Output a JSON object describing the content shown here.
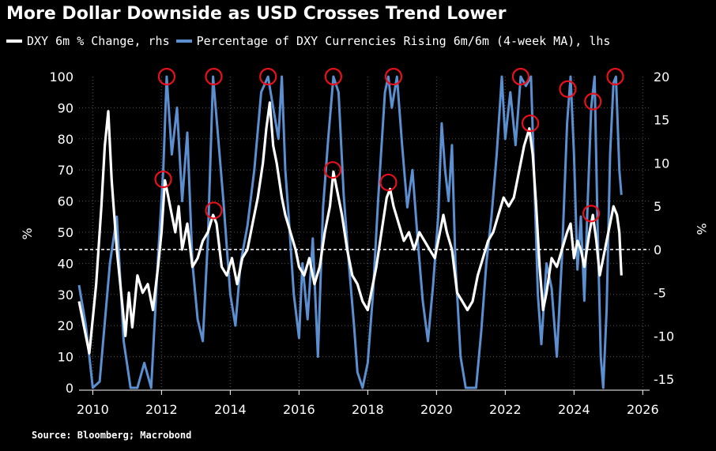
{
  "title": "More Dollar Downside as USD Crosses Trend Lower",
  "source": "Source: Bloomberg; Macrobond",
  "colors": {
    "dxy": "#ffffff",
    "pct": "#5b8fd0",
    "circle": "#e8101a",
    "background": "#000000",
    "grid": "#555555"
  },
  "legend": [
    {
      "label": "DXY 6m % Change, rhs",
      "color": "#ffffff"
    },
    {
      "label": "Percentage of DXY Currencies Rising 6m/6m (4-week MA), lhs",
      "color": "#5b8fd0"
    }
  ],
  "chart_data": {
    "type": "line",
    "title": "More Dollar Downside as USD Crosses Trend Lower",
    "xlim": [
      2009.6,
      2026.2
    ],
    "x_ticks": [
      "2010",
      "2012",
      "2014",
      "2016",
      "2018",
      "2020",
      "2022",
      "2024",
      "2026"
    ],
    "left_axis": {
      "label": "%",
      "range": [
        0,
        100
      ],
      "ticks": [
        "0",
        "10",
        "20",
        "30",
        "40",
        "50",
        "60",
        "70",
        "80",
        "90",
        "100"
      ]
    },
    "right_axis": {
      "label": "%",
      "range": [
        -16,
        20
      ],
      "ticks": [
        "-15",
        "-10",
        "-5",
        "0",
        "5",
        "10",
        "15",
        "20"
      ]
    },
    "zero_line": {
      "axis": "right",
      "value": 0,
      "style": "dashed"
    },
    "series": [
      {
        "name": "Percentage of DXY Currencies Rising 6m/6m (4-week MA), lhs",
        "axis": "left",
        "color": "#5b8fd0",
        "points": [
          [
            2009.6,
            33
          ],
          [
            2009.8,
            20
          ],
          [
            2010.0,
            0
          ],
          [
            2010.2,
            2
          ],
          [
            2010.5,
            40
          ],
          [
            2010.7,
            55
          ],
          [
            2010.9,
            15
          ],
          [
            2011.1,
            0
          ],
          [
            2011.3,
            0
          ],
          [
            2011.5,
            8
          ],
          [
            2011.7,
            0
          ],
          [
            2011.9,
            42
          ],
          [
            2012.05,
            70
          ],
          [
            2012.15,
            100
          ],
          [
            2012.3,
            75
          ],
          [
            2012.45,
            90
          ],
          [
            2012.6,
            60
          ],
          [
            2012.75,
            82
          ],
          [
            2012.9,
            40
          ],
          [
            2013.05,
            22
          ],
          [
            2013.2,
            15
          ],
          [
            2013.35,
            48
          ],
          [
            2013.5,
            100
          ],
          [
            2013.65,
            80
          ],
          [
            2013.8,
            60
          ],
          [
            2014.0,
            30
          ],
          [
            2014.15,
            20
          ],
          [
            2014.3,
            40
          ],
          [
            2014.5,
            52
          ],
          [
            2014.7,
            70
          ],
          [
            2014.9,
            95
          ],
          [
            2015.1,
            100
          ],
          [
            2015.25,
            90
          ],
          [
            2015.4,
            80
          ],
          [
            2015.5,
            100
          ],
          [
            2015.6,
            70
          ],
          [
            2015.7,
            55
          ],
          [
            2015.85,
            30
          ],
          [
            2016.0,
            16
          ],
          [
            2016.1,
            40
          ],
          [
            2016.25,
            22
          ],
          [
            2016.4,
            48
          ],
          [
            2016.55,
            10
          ],
          [
            2016.7,
            58
          ],
          [
            2016.85,
            80
          ],
          [
            2017.0,
            100
          ],
          [
            2017.15,
            95
          ],
          [
            2017.3,
            62
          ],
          [
            2017.45,
            40
          ],
          [
            2017.6,
            20
          ],
          [
            2017.7,
            5
          ],
          [
            2017.85,
            0
          ],
          [
            2018.0,
            8
          ],
          [
            2018.15,
            30
          ],
          [
            2018.3,
            60
          ],
          [
            2018.5,
            95
          ],
          [
            2018.6,
            100
          ],
          [
            2018.7,
            90
          ],
          [
            2018.85,
            100
          ],
          [
            2019.0,
            78
          ],
          [
            2019.15,
            58
          ],
          [
            2019.3,
            70
          ],
          [
            2019.45,
            48
          ],
          [
            2019.6,
            28
          ],
          [
            2019.75,
            15
          ],
          [
            2019.9,
            33
          ],
          [
            2020.05,
            55
          ],
          [
            2020.15,
            85
          ],
          [
            2020.25,
            70
          ],
          [
            2020.35,
            60
          ],
          [
            2020.45,
            78
          ],
          [
            2020.55,
            40
          ],
          [
            2020.7,
            10
          ],
          [
            2020.85,
            0
          ],
          [
            2021.0,
            0
          ],
          [
            2021.15,
            0
          ],
          [
            2021.3,
            18
          ],
          [
            2021.45,
            40
          ],
          [
            2021.6,
            55
          ],
          [
            2021.75,
            75
          ],
          [
            2021.9,
            100
          ],
          [
            2022.0,
            80
          ],
          [
            2022.15,
            95
          ],
          [
            2022.3,
            78
          ],
          [
            2022.45,
            100
          ],
          [
            2022.6,
            97
          ],
          [
            2022.75,
            100
          ],
          [
            2022.85,
            65
          ],
          [
            2022.95,
            30
          ],
          [
            2023.05,
            14
          ],
          [
            2023.2,
            40
          ],
          [
            2023.35,
            32
          ],
          [
            2023.5,
            10
          ],
          [
            2023.65,
            42
          ],
          [
            2023.8,
            85
          ],
          [
            2023.9,
            100
          ],
          [
            2024.0,
            75
          ],
          [
            2024.1,
            38
          ],
          [
            2024.2,
            55
          ],
          [
            2024.3,
            28
          ],
          [
            2024.4,
            60
          ],
          [
            2024.5,
            90
          ],
          [
            2024.6,
            100
          ],
          [
            2024.68,
            55
          ],
          [
            2024.78,
            10
          ],
          [
            2024.85,
            0
          ],
          [
            2024.95,
            25
          ],
          [
            2025.05,
            75
          ],
          [
            2025.15,
            98
          ],
          [
            2025.22,
            100
          ],
          [
            2025.32,
            70
          ],
          [
            2025.38,
            62
          ]
        ]
      },
      {
        "name": "DXY 6m % Change, rhs",
        "axis": "right",
        "color": "#ffffff",
        "points": [
          [
            2009.6,
            -6
          ],
          [
            2009.75,
            -9
          ],
          [
            2009.9,
            -12
          ],
          [
            2010.0,
            -8
          ],
          [
            2010.1,
            -4
          ],
          [
            2010.25,
            5
          ],
          [
            2010.35,
            12
          ],
          [
            2010.45,
            16
          ],
          [
            2010.55,
            8
          ],
          [
            2010.7,
            0
          ],
          [
            2010.85,
            -6
          ],
          [
            2010.95,
            -10
          ],
          [
            2011.05,
            -5
          ],
          [
            2011.15,
            -9
          ],
          [
            2011.3,
            -3
          ],
          [
            2011.45,
            -5
          ],
          [
            2011.6,
            -4
          ],
          [
            2011.75,
            -7
          ],
          [
            2011.9,
            -2
          ],
          [
            2012.0,
            2
          ],
          [
            2012.1,
            8
          ],
          [
            2012.2,
            6
          ],
          [
            2012.3,
            4
          ],
          [
            2012.4,
            2
          ],
          [
            2012.5,
            5
          ],
          [
            2012.6,
            0
          ],
          [
            2012.75,
            3
          ],
          [
            2012.9,
            -2
          ],
          [
            2013.05,
            -1
          ],
          [
            2013.2,
            1
          ],
          [
            2013.35,
            2
          ],
          [
            2013.5,
            4
          ],
          [
            2013.6,
            3
          ],
          [
            2013.75,
            -2
          ],
          [
            2013.9,
            -3
          ],
          [
            2014.05,
            -1
          ],
          [
            2014.2,
            -4
          ],
          [
            2014.35,
            -1
          ],
          [
            2014.5,
            0
          ],
          [
            2014.65,
            3
          ],
          [
            2014.8,
            6
          ],
          [
            2014.95,
            10
          ],
          [
            2015.05,
            14
          ],
          [
            2015.15,
            17
          ],
          [
            2015.25,
            12
          ],
          [
            2015.35,
            10
          ],
          [
            2015.5,
            6
          ],
          [
            2015.6,
            4
          ],
          [
            2015.75,
            2
          ],
          [
            2015.9,
            0
          ],
          [
            2016.0,
            -2
          ],
          [
            2016.15,
            -3
          ],
          [
            2016.3,
            -1
          ],
          [
            2016.45,
            -4
          ],
          [
            2016.6,
            -2
          ],
          [
            2016.75,
            2
          ],
          [
            2016.9,
            5
          ],
          [
            2017.0,
            9
          ],
          [
            2017.1,
            7
          ],
          [
            2017.25,
            4
          ],
          [
            2017.4,
            0
          ],
          [
            2017.55,
            -3
          ],
          [
            2017.7,
            -4
          ],
          [
            2017.85,
            -6
          ],
          [
            2018.0,
            -7
          ],
          [
            2018.1,
            -5
          ],
          [
            2018.25,
            -2
          ],
          [
            2018.4,
            2
          ],
          [
            2018.55,
            6
          ],
          [
            2018.65,
            7
          ],
          [
            2018.75,
            5
          ],
          [
            2018.9,
            3
          ],
          [
            2019.05,
            1
          ],
          [
            2019.2,
            2
          ],
          [
            2019.35,
            0
          ],
          [
            2019.5,
            2
          ],
          [
            2019.65,
            1
          ],
          [
            2019.8,
            0
          ],
          [
            2019.95,
            -1
          ],
          [
            2020.1,
            2
          ],
          [
            2020.2,
            4
          ],
          [
            2020.3,
            2
          ],
          [
            2020.45,
            0
          ],
          [
            2020.6,
            -5
          ],
          [
            2020.75,
            -6
          ],
          [
            2020.9,
            -7
          ],
          [
            2021.05,
            -6
          ],
          [
            2021.2,
            -3
          ],
          [
            2021.35,
            -1
          ],
          [
            2021.5,
            1
          ],
          [
            2021.65,
            2
          ],
          [
            2021.8,
            4
          ],
          [
            2021.95,
            6
          ],
          [
            2022.1,
            5
          ],
          [
            2022.25,
            6
          ],
          [
            2022.4,
            9
          ],
          [
            2022.55,
            12
          ],
          [
            2022.7,
            14
          ],
          [
            2022.8,
            11
          ],
          [
            2022.9,
            5
          ],
          [
            2023.0,
            -2
          ],
          [
            2023.1,
            -7
          ],
          [
            2023.2,
            -5
          ],
          [
            2023.35,
            -1
          ],
          [
            2023.5,
            -2
          ],
          [
            2023.65,
            0
          ],
          [
            2023.8,
            2
          ],
          [
            2023.9,
            3
          ],
          [
            2024.0,
            -1
          ],
          [
            2024.1,
            1
          ],
          [
            2024.2,
            0
          ],
          [
            2024.3,
            -2
          ],
          [
            2024.45,
            2
          ],
          [
            2024.55,
            4
          ],
          [
            2024.65,
            1
          ],
          [
            2024.75,
            -3
          ],
          [
            2024.85,
            -1
          ],
          [
            2024.95,
            1
          ],
          [
            2025.05,
            3
          ],
          [
            2025.15,
            5
          ],
          [
            2025.25,
            4
          ],
          [
            2025.32,
            2
          ],
          [
            2025.38,
            -3
          ]
        ]
      }
    ],
    "annotations": {
      "circles_red": [
        [
          2012.15,
          100
        ],
        [
          2013.52,
          100
        ],
        [
          2015.1,
          100
        ],
        [
          2017.0,
          100
        ],
        [
          2018.75,
          100
        ],
        [
          2022.45,
          100
        ],
        [
          2023.82,
          96
        ],
        [
          2024.55,
          92
        ],
        [
          2025.2,
          100
        ],
        [
          2012.05,
          67
        ],
        [
          2013.52,
          57
        ],
        [
          2016.98,
          70
        ],
        [
          2018.6,
          66
        ],
        [
          2022.73,
          85
        ],
        [
          2024.5,
          56
        ]
      ]
    }
  }
}
